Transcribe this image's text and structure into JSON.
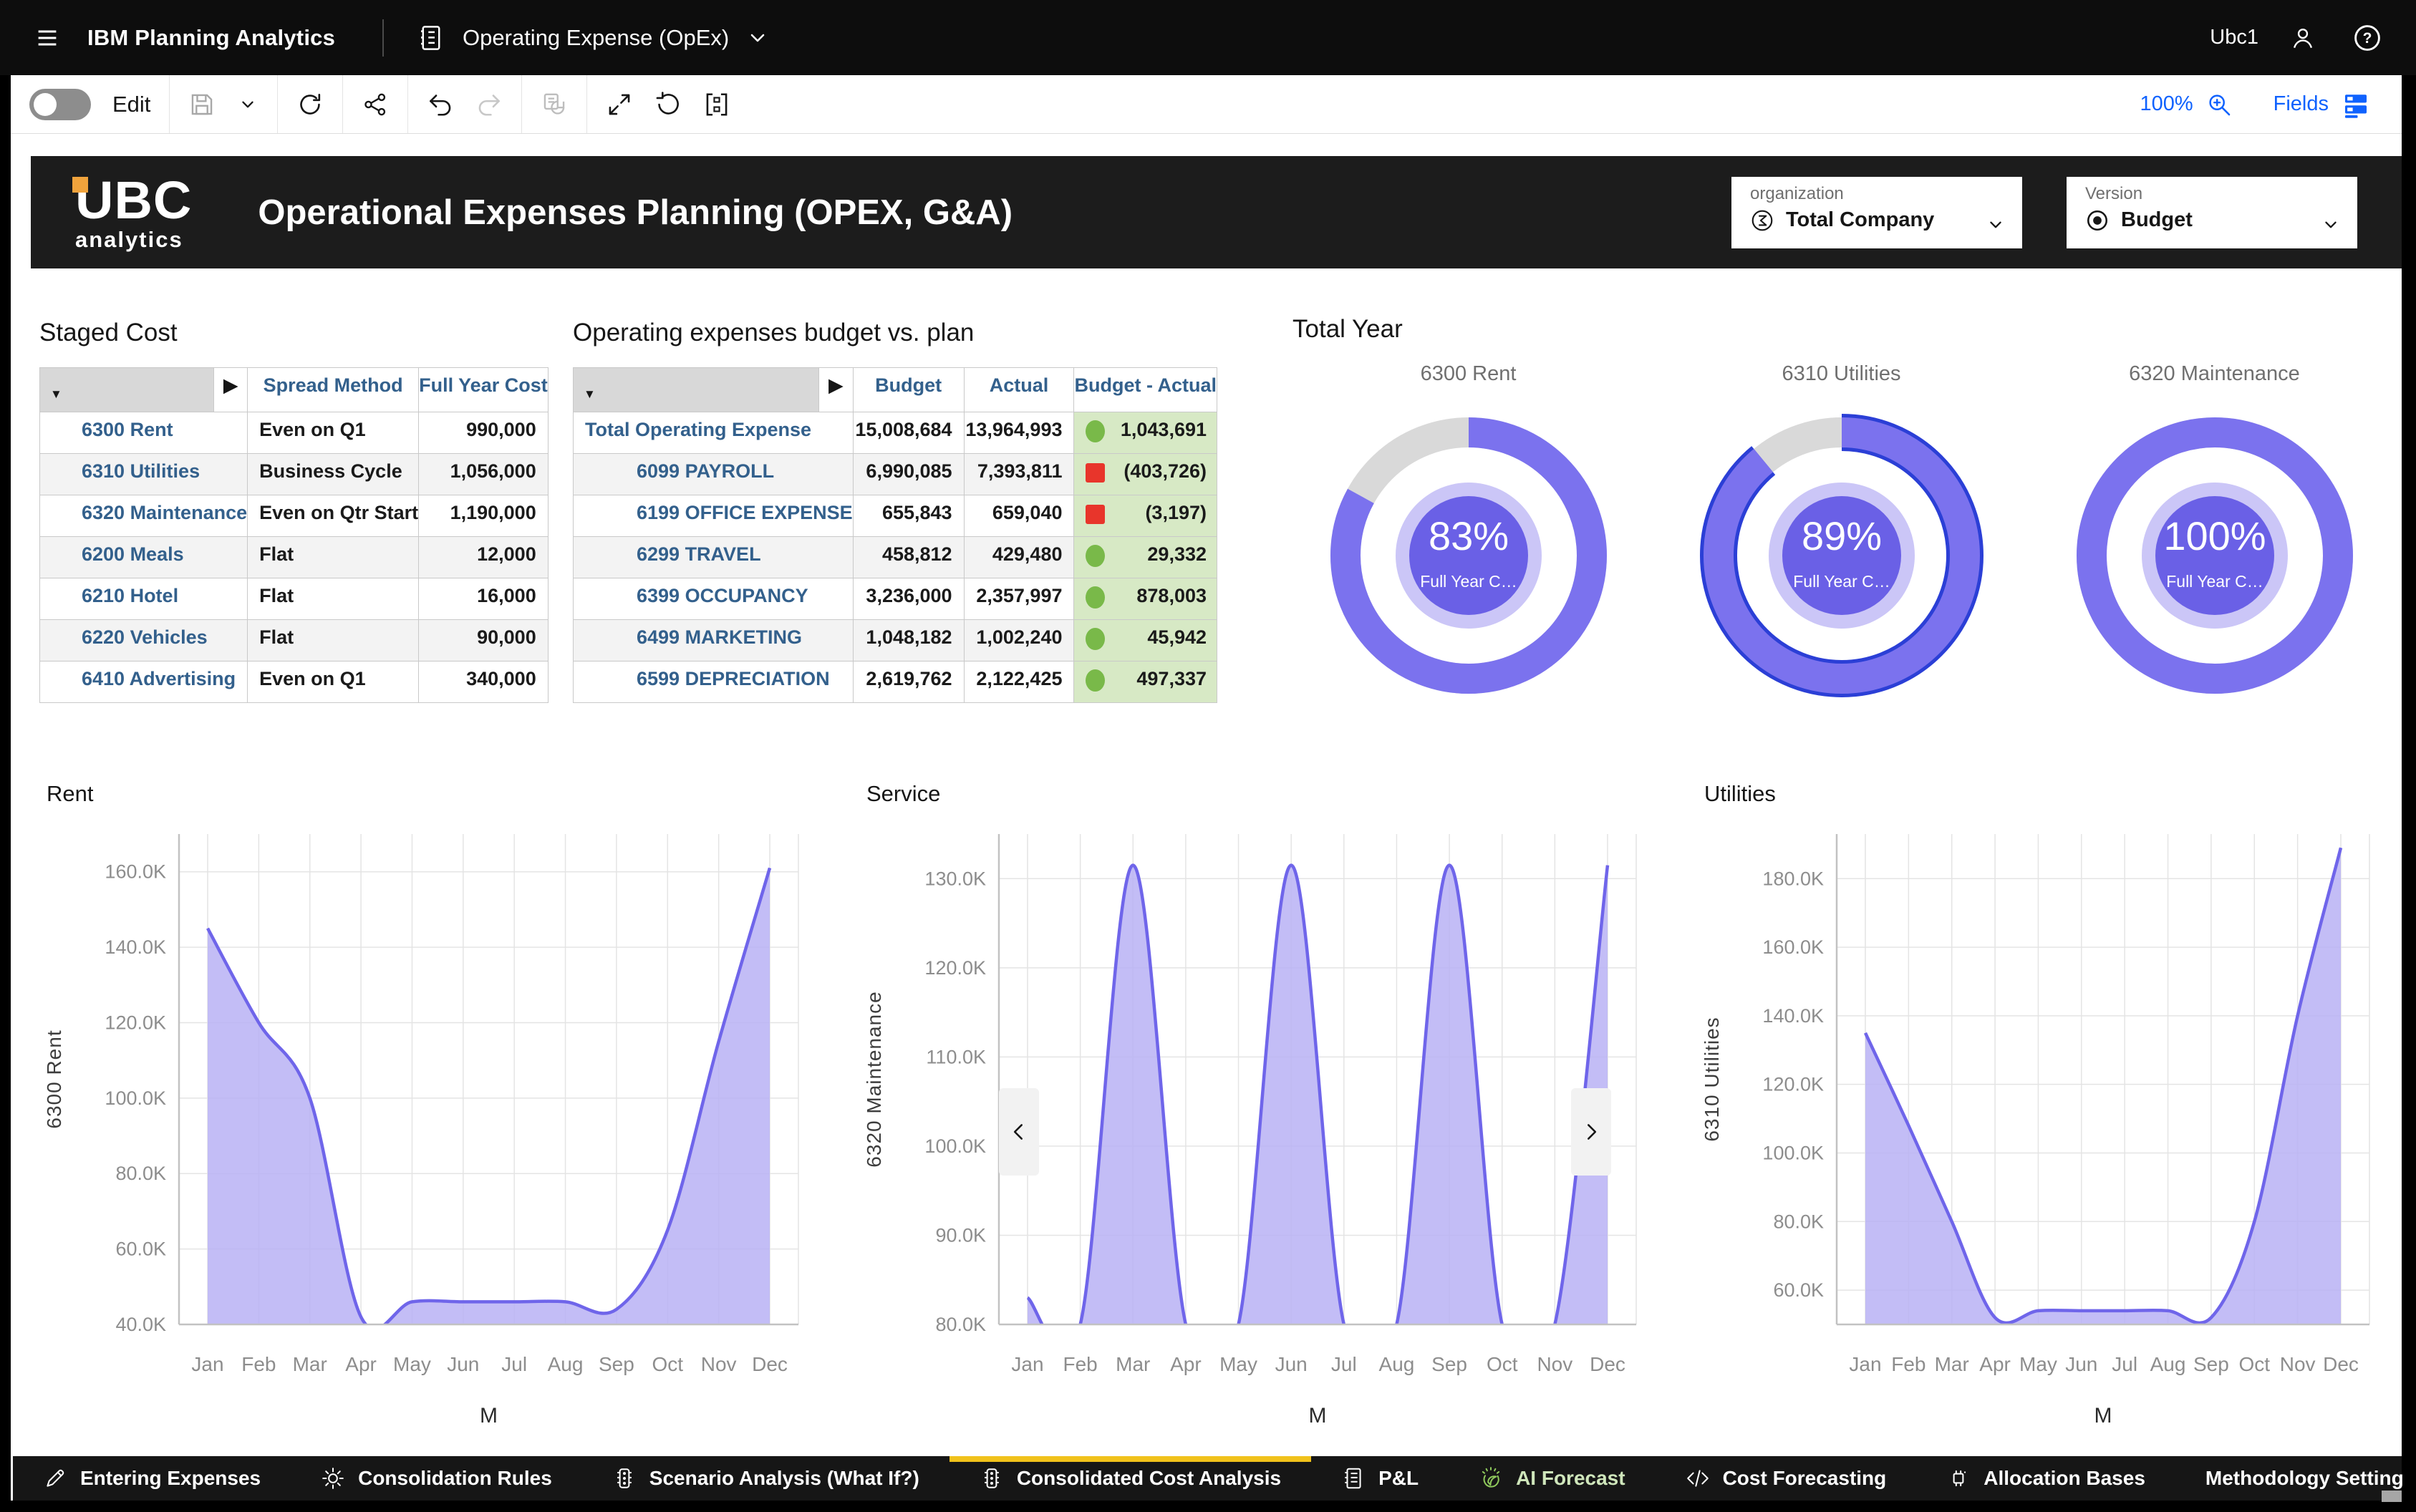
{
  "colors": {
    "accent_blue": "#0f62fe",
    "ring_purple": "#7b72ee",
    "ring_gray": "#d9d9d9",
    "selected_outline": "#2b3fd6",
    "inner_purple": "#6a60e6",
    "halo_purple": "#cbc6f7",
    "line_purple": "#6f65ea",
    "fill_purple": "#b9b1f4",
    "green": "#79b949",
    "green_bg": "#d7e9c5",
    "red": "#e8352b",
    "tab_yellow": "#f1c21b",
    "table_blue": "#33608c",
    "ai_green": "#a9d488"
  },
  "top_bar": {
    "app_title": "IBM Planning Analytics",
    "workbook_title": "Operating Expense (OpEx)",
    "user_name": "Ubc1"
  },
  "toolbar": {
    "edit_label": "Edit",
    "zoom_level": "100%",
    "fields_label": "Fields"
  },
  "dashboard_header": {
    "logo_top": "UBC",
    "logo_bottom": "analytics",
    "title": "Operational Expenses Planning (OPEX, G&A)",
    "filters": [
      {
        "label": "organization",
        "value": "Total Company",
        "icon": "sigma-icon"
      },
      {
        "label": "Version",
        "value": "Budget",
        "icon": "target-icon"
      }
    ]
  },
  "staged_cost": {
    "title": "Staged Cost",
    "columns": [
      "Spread Method",
      "Full Year Cost"
    ],
    "rows": [
      {
        "label": "6300 Rent",
        "method": "Even on Q1",
        "cost": "990,000"
      },
      {
        "label": "6310 Utilities",
        "method": "Business Cycle",
        "cost": "1,056,000"
      },
      {
        "label": "6320 Maintenance",
        "method": "Even on Qtr Start",
        "cost": "1,190,000"
      },
      {
        "label": "6200 Meals",
        "method": "Flat",
        "cost": "12,000"
      },
      {
        "label": "6210 Hotel",
        "method": "Flat",
        "cost": "16,000"
      },
      {
        "label": "6220 Vehicles",
        "method": "Flat",
        "cost": "90,000"
      },
      {
        "label": "6410 Advertising",
        "method": "Even on Q1",
        "cost": "340,000"
      }
    ]
  },
  "budget_vs_plan": {
    "title": "Operating expenses budget vs. plan",
    "columns": [
      "Budget",
      "Actual",
      "Budget - Actual"
    ],
    "rows": [
      {
        "label": "Total Operating Expense",
        "level": 0,
        "budget": "15,008,684",
        "actual": "13,964,993",
        "variance": "1,043,691",
        "status": "good"
      },
      {
        "label": "6099 PAYROLL",
        "level": 1,
        "budget": "6,990,085",
        "actual": "7,393,811",
        "variance": "(403,726)",
        "status": "bad"
      },
      {
        "label": "6199 OFFICE EXPENSE",
        "level": 1,
        "budget": "655,843",
        "actual": "659,040",
        "variance": "(3,197)",
        "status": "bad"
      },
      {
        "label": "6299 TRAVEL",
        "level": 1,
        "budget": "458,812",
        "actual": "429,480",
        "variance": "29,332",
        "status": "good"
      },
      {
        "label": "6399 OCCUPANCY",
        "level": 1,
        "budget": "3,236,000",
        "actual": "2,357,997",
        "variance": "878,003",
        "status": "good"
      },
      {
        "label": "6499 MARKETING",
        "level": 1,
        "budget": "1,048,182",
        "actual": "1,002,240",
        "variance": "45,942",
        "status": "good"
      },
      {
        "label": "6599 DEPRECIATION",
        "level": 1,
        "budget": "2,619,762",
        "actual": "2,122,425",
        "variance": "497,337",
        "status": "good"
      }
    ]
  },
  "total_year": {
    "title": "Total Year",
    "donuts": [
      {
        "label": "6300 Rent",
        "percent": 83,
        "center_text": "83%",
        "sub_text": "Full Year C…",
        "selected": false
      },
      {
        "label": "6310 Utilities",
        "percent": 89,
        "center_text": "89%",
        "sub_text": "Full Year C…",
        "selected": true
      },
      {
        "label": "6320 Maintenance",
        "percent": 100,
        "center_text": "100%",
        "sub_text": "Full Year C…",
        "selected": false
      }
    ]
  },
  "chart_data": [
    {
      "type": "area",
      "title": "Rent",
      "ylabel": "6300 Rent",
      "xlabel": "M",
      "categories": [
        "Jan",
        "Feb",
        "Mar",
        "Apr",
        "May",
        "Jun",
        "Jul",
        "Aug",
        "Sep",
        "Oct",
        "Nov",
        "Dec"
      ],
      "values": [
        145000,
        120000,
        100000,
        42000,
        46000,
        46000,
        46000,
        46000,
        44000,
        65000,
        115000,
        161000
      ],
      "yticks": [
        40000,
        60000,
        80000,
        100000,
        120000,
        140000,
        160000
      ],
      "ylim": [
        40000,
        170000
      ],
      "grid": true,
      "nav_arrows": false
    },
    {
      "type": "area",
      "title": "Service",
      "ylabel": "6320 Maintenance",
      "xlabel": "M",
      "categories": [
        "Jan",
        "Feb",
        "Mar",
        "Apr",
        "May",
        "Jun",
        "Jul",
        "Aug",
        "Sep",
        "Oct",
        "Nov",
        "Dec"
      ],
      "values": [
        83000,
        80000,
        131500,
        80000,
        80000,
        131500,
        80000,
        80000,
        131500,
        80000,
        80000,
        131500
      ],
      "yticks": [
        80000,
        90000,
        100000,
        110000,
        120000,
        130000
      ],
      "ylim": [
        80000,
        135000
      ],
      "grid": true,
      "nav_arrows": true
    },
    {
      "type": "area",
      "title": "Utilities",
      "ylabel": "6310 Utilities",
      "xlabel": "M",
      "categories": [
        "Jan",
        "Feb",
        "Mar",
        "Apr",
        "May",
        "Jun",
        "Jul",
        "Aug",
        "Sep",
        "Oct",
        "Nov",
        "Dec"
      ],
      "values": [
        135000,
        108000,
        80000,
        52000,
        54000,
        54000,
        54000,
        54000,
        52000,
        80000,
        140000,
        189000
      ],
      "yticks": [
        60000,
        80000,
        100000,
        120000,
        140000,
        160000,
        180000
      ],
      "ylim": [
        50000,
        193000
      ],
      "grid": true,
      "nav_arrows": false
    }
  ],
  "tabs": {
    "items": [
      {
        "label": "Entering Expenses",
        "icon": "pen-icon",
        "active": false
      },
      {
        "label": "Consolidation Rules",
        "icon": "gear-icon",
        "active": false
      },
      {
        "label": "Scenario Analysis (What If?)",
        "icon": "traffic-icon",
        "active": false
      },
      {
        "label": "Consolidated Cost Analysis",
        "icon": "traffic-icon",
        "active": true
      },
      {
        "label": "P&L",
        "icon": "ledger-icon",
        "active": false
      },
      {
        "label": "AI Forecast",
        "icon": "bulb-icon",
        "active": false,
        "highlight": true
      },
      {
        "label": "Cost Forecasting",
        "icon": "code-icon",
        "active": false
      },
      {
        "label": "Allocation Bases",
        "icon": "chip-icon",
        "active": false
      },
      {
        "label": "Methodology Setting",
        "icon": null,
        "active": false
      },
      {
        "label": "Settin",
        "icon": null,
        "active": false,
        "truncated": true
      }
    ]
  }
}
